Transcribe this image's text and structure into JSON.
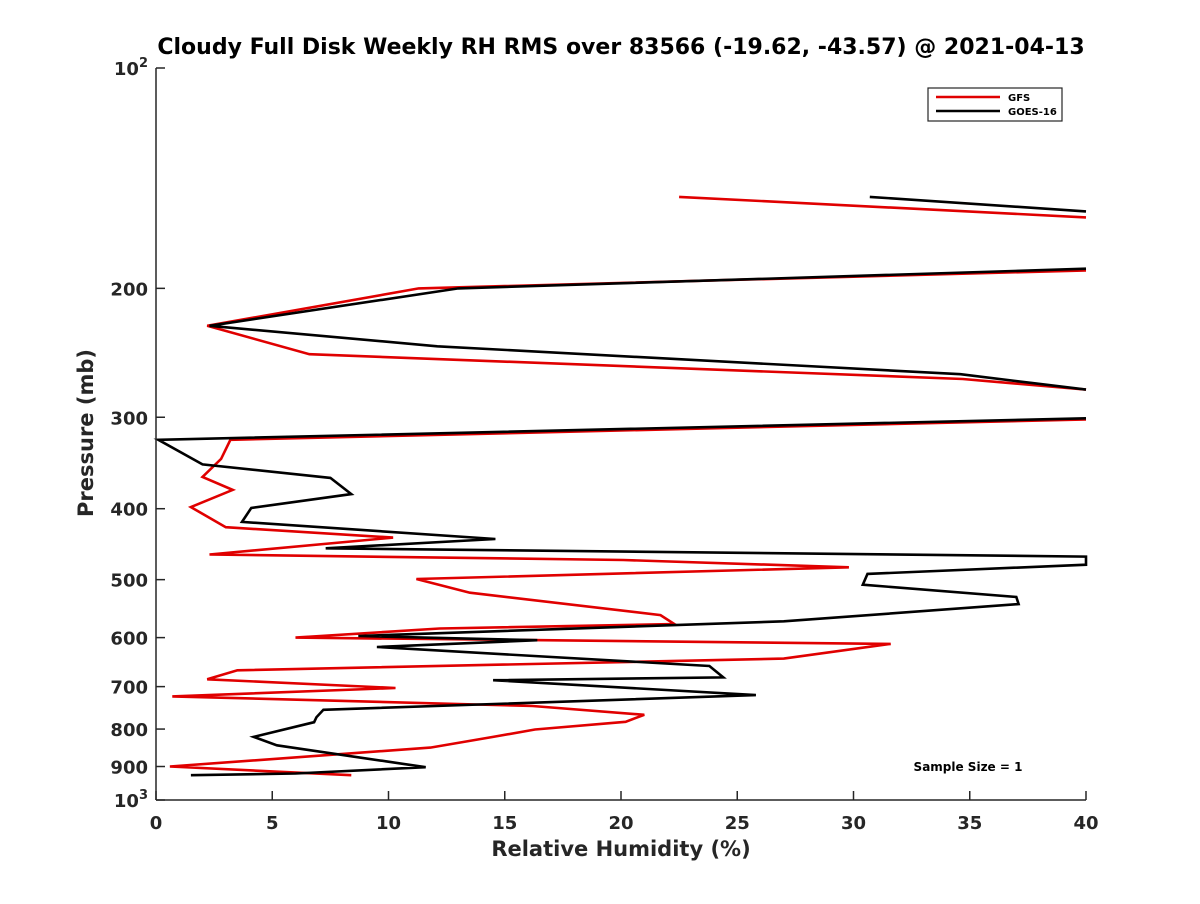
{
  "chart_data": {
    "type": "line",
    "title": "Cloudy Full Disk Weekly RH RMS over 83566 (-19.62, -43.57) @ 2021-04-13",
    "xlabel": "Relative Humidity (%)",
    "ylabel": "Pressure (mb)",
    "xlim": [
      0,
      40
    ],
    "ylim": [
      100,
      1000
    ],
    "y_scale": "log",
    "y_reversed": true,
    "grid": false,
    "legend_position": "top-right",
    "x_ticks": [
      0,
      5,
      10,
      15,
      20,
      25,
      30,
      35,
      40
    ],
    "x_tick_labels": [
      "0",
      "5",
      "10",
      "15",
      "20",
      "25",
      "30",
      "35",
      "40"
    ],
    "y_ticks": [
      {
        "value": 100,
        "base": "10",
        "exp": "2"
      },
      {
        "value": 200,
        "label": "200"
      },
      {
        "value": 300,
        "label": "300"
      },
      {
        "value": 400,
        "label": "400"
      },
      {
        "value": 500,
        "label": "500"
      },
      {
        "value": 600,
        "label": "600"
      },
      {
        "value": 700,
        "label": "700"
      },
      {
        "value": 800,
        "label": "800"
      },
      {
        "value": 900,
        "label": "900"
      },
      {
        "value": 1000,
        "base": "10",
        "exp": "3"
      }
    ],
    "annotation": "Sample Size = 1",
    "series": [
      {
        "name": "GFS",
        "color": "#e00000",
        "segments": [
          [
            [
              22.5,
              150
            ],
            [
              40,
              160
            ]
          ],
          [
            [
              40,
              189
            ],
            [
              11.3,
              200
            ],
            [
              2.2,
              225
            ],
            [
              6.6,
              246
            ],
            [
              34.7,
              266
            ],
            [
              40,
              275
            ]
          ],
          [
            [
              40,
              302
            ],
            [
              3.2,
              322
            ],
            [
              2.8,
              342
            ],
            [
              2.0,
              362
            ],
            [
              3.3,
              377
            ],
            [
              1.5,
              398
            ],
            [
              3.0,
              424
            ],
            [
              10.2,
              438
            ],
            [
              2.3,
              462
            ],
            [
              20.1,
              470
            ],
            [
              29.8,
              481
            ],
            [
              11.2,
              499
            ],
            [
              13.5,
              521
            ],
            [
              21.7,
              559
            ],
            [
              22.3,
              575
            ],
            [
              12.2,
              583
            ],
            [
              6.0,
              600
            ],
            [
              31.6,
              612
            ],
            [
              27.0,
              641
            ],
            [
              3.5,
              665
            ],
            [
              2.2,
              684
            ],
            [
              10.3,
              703
            ],
            [
              0.7,
              722
            ],
            [
              16.2,
              744
            ],
            [
              21.0,
              765
            ],
            [
              20.2,
              782
            ],
            [
              16.3,
              801
            ],
            [
              14.5,
              820
            ],
            [
              11.8,
              848
            ],
            [
              0.6,
              900
            ],
            [
              8.4,
              925
            ]
          ]
        ]
      },
      {
        "name": "GOES-16",
        "color": "#000000",
        "segments": [
          [
            [
              30.7,
              150
            ],
            [
              40,
              157
            ]
          ],
          [
            [
              40,
              188
            ],
            [
              13,
              200
            ],
            [
              2.3,
              225
            ],
            [
              12.1,
              240
            ],
            [
              34.6,
              262
            ],
            [
              40,
              275
            ]
          ],
          [
            [
              40,
              301
            ],
            [
              0.1,
              322
            ],
            [
              2.0,
              348
            ],
            [
              7.5,
              363
            ],
            [
              8.4,
              382
            ],
            [
              4.1,
              399
            ],
            [
              3.7,
              417
            ],
            [
              14.6,
              440
            ],
            [
              7.3,
              453
            ],
            [
              40,
              465
            ],
            [
              40,
              477
            ],
            [
              30.6,
              491
            ],
            [
              30.4,
              508
            ],
            [
              37.0,
              528
            ],
            [
              37.1,
              540
            ],
            [
              27,
              570
            ],
            [
              8.7,
              597
            ],
            [
              16.4,
              605
            ],
            [
              9.5,
              618
            ],
            [
              23.8,
              656
            ],
            [
              24.4,
              680
            ],
            [
              14.5,
              686
            ],
            [
              25.8,
              719
            ],
            [
              7.2,
              753
            ],
            [
              6.9,
              771
            ],
            [
              6.8,
              783
            ],
            [
              4.2,
              820
            ],
            [
              5.2,
              842
            ],
            [
              11.6,
              902
            ],
            [
              6.0,
              920
            ],
            [
              1.5,
              925
            ]
          ]
        ]
      }
    ]
  }
}
